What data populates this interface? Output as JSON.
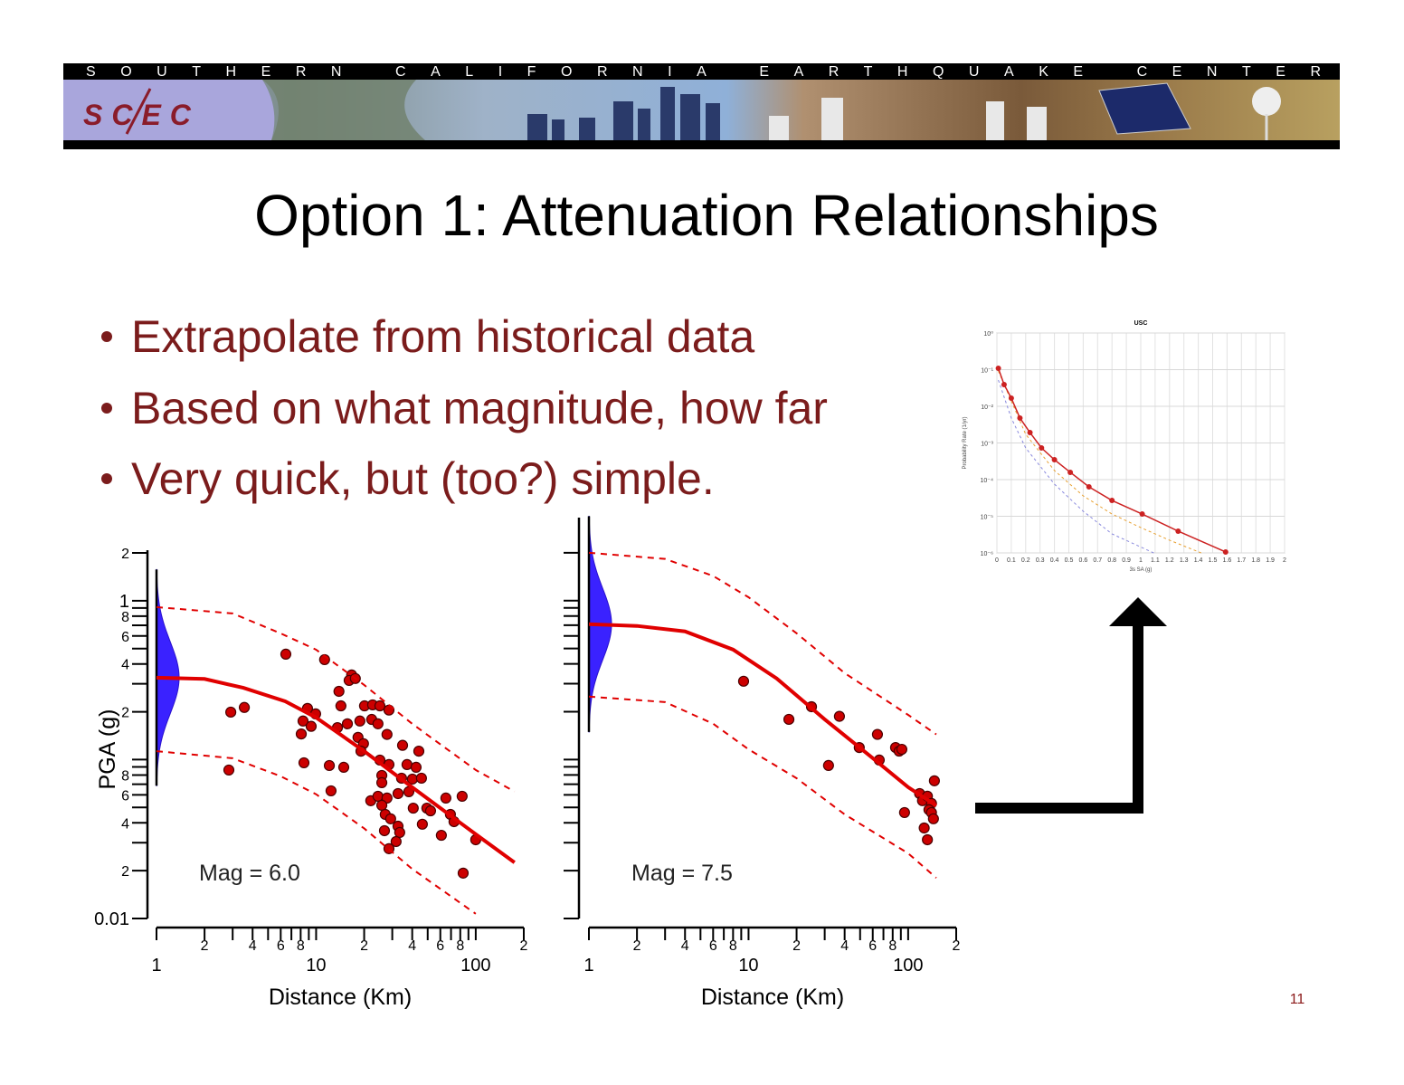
{
  "header": {
    "organization": "SOUTHERN CALIFORNIA EARTHQUAKE CENTER",
    "logo": "SCEC"
  },
  "title": "Option 1: Attenuation Relationships",
  "bullets": [
    "Extrapolate from historical data",
    "Based on what magnitude, how far",
    "Very quick, but (too?) simple."
  ],
  "chart_data": [
    {
      "type": "scatter",
      "x_scale": "log",
      "y_scale": "log",
      "xlabel": "Distance (Km)",
      "ylabel": "PGA (g)",
      "annotation": "Mag = 6.0",
      "xlim": [
        1,
        200
      ],
      "ylim": [
        0.01,
        2
      ],
      "xticks": [
        1,
        2,
        4,
        6,
        8,
        10,
        {
          "value": 20,
          "label": "2"
        },
        {
          "value": 40,
          "label": "4"
        },
        {
          "value": 60,
          "label": "6"
        },
        {
          "value": 80,
          "label": "8"
        },
        100,
        {
          "value": 200,
          "label": "2"
        }
      ],
      "xminor": [
        3,
        5,
        7,
        9,
        30,
        50,
        70,
        90
      ],
      "yticks": [
        0.01,
        {
          "value": 0.02,
          "label": "2"
        },
        {
          "value": 0.04,
          "label": "4"
        },
        {
          "value": 0.06,
          "label": "6"
        },
        {
          "value": 0.08,
          "label": "8"
        },
        {
          "value": 0.2,
          "label": "2"
        },
        {
          "value": 0.4,
          "label": "4"
        },
        {
          "value": 0.6,
          "label": "6"
        },
        {
          "value": 0.8,
          "label": "8"
        },
        1,
        2
      ],
      "yminor": [
        0.03,
        0.05,
        0.07,
        0.09,
        0.1,
        0.3,
        0.5,
        0.7,
        0.9
      ],
      "series": [
        {
          "kind": "scatter",
          "color": "#cc0000",
          "x": [
            6.46,
            11.3,
            2.92,
            3.55,
            2.84,
            16.7,
            16.1,
            17.6,
            13.9,
            14.3,
            8.83,
            9.93,
            8.28,
            9.31,
            8.07,
            15.7,
            13.6,
            18.8,
            20.1,
            22.6,
            25.1,
            28.6,
            22.3,
            24.4,
            18.3,
            19.8,
            27.8,
            34.8,
            44.0,
            19.1,
            8.39,
            12.1,
            14.9,
            25.1,
            28.6,
            37.1,
            42.3,
            25.8,
            25.8,
            34.3,
            40.1,
            45.7,
            32.6,
            38.1,
            12.4,
            22.0,
            24.4,
            27.8,
            25.8,
            40.6,
            49.4,
            52.1,
            65.0,
            82.2,
            69.4,
            73.1,
            27.1,
            29.3,
            26.8,
            32.6,
            33.4,
            31.7,
            28.6,
            46.3,
            60.9,
            100,
            83.4
          ],
          "values": [
            0.461,
            0.426,
            0.199,
            0.213,
            0.086,
            0.341,
            0.315,
            0.324,
            0.269,
            0.218,
            0.21,
            0.194,
            0.175,
            0.162,
            0.145,
            0.168,
            0.159,
            0.175,
            0.218,
            0.221,
            0.218,
            0.205,
            0.179,
            0.168,
            0.138,
            0.126,
            0.144,
            0.123,
            0.113,
            0.113,
            0.0955,
            0.0918,
            0.0895,
            0.0993,
            0.0931,
            0.0931,
            0.0895,
            0.0795,
            0.0716,
            0.0764,
            0.0754,
            0.0764,
            0.0611,
            0.0628,
            0.0636,
            0.0551,
            0.0588,
            0.0573,
            0.0516,
            0.0495,
            0.0495,
            0.0476,
            0.0573,
            0.0588,
            0.0452,
            0.0407,
            0.0452,
            0.0424,
            0.0357,
            0.0381,
            0.0348,
            0.0305,
            0.0275,
            0.0392,
            0.0334,
            0.0313,
            0.0193
          ]
        },
        {
          "kind": "line",
          "dashed": false,
          "color": "#e00000",
          "x": [
            1,
            2,
            3.5,
            6.4,
            10,
            20,
            40,
            100,
            175
          ],
          "values": [
            0.328,
            0.322,
            0.283,
            0.233,
            0.184,
            0.113,
            0.067,
            0.0339,
            0.0225
          ]
        },
        {
          "kind": "line",
          "dashed": true,
          "color": "#e00000",
          "x": [
            1,
            3,
            6,
            10,
            20,
            40,
            100,
            175
          ],
          "values": [
            0.912,
            0.832,
            0.623,
            0.492,
            0.295,
            0.168,
            0.086,
            0.063
          ]
        },
        {
          "kind": "line",
          "dashed": true,
          "color": "#e00000",
          "x": [
            1,
            3,
            6,
            10,
            20,
            40,
            100
          ],
          "values": [
            0.113,
            0.102,
            0.0786,
            0.0605,
            0.0369,
            0.0205,
            0.0107
          ]
        }
      ]
    },
    {
      "type": "scatter",
      "x_scale": "log",
      "y_scale": "log",
      "xlabel": "Distance (Km)",
      "annotation": "Mag = 7.5",
      "xlim": [
        1,
        200
      ],
      "ylim": [
        0.01,
        3.2
      ],
      "xticks": [
        1,
        2,
        4,
        6,
        8,
        10,
        {
          "value": 20,
          "label": "2"
        },
        {
          "value": 40,
          "label": "4"
        },
        {
          "value": 60,
          "label": "6"
        },
        {
          "value": 80,
          "label": "8"
        },
        100,
        {
          "value": 200,
          "label": "2"
        }
      ],
      "xminor": [
        3,
        5,
        7,
        9,
        30,
        50,
        70,
        90
      ],
      "yminor": [
        0.01,
        0.02,
        0.03,
        0.04,
        0.05,
        0.06,
        0.07,
        0.08,
        0.09,
        0.1,
        0.2,
        0.3,
        0.4,
        0.5,
        0.6,
        0.7,
        0.8,
        0.9,
        1,
        2
      ],
      "series": [
        {
          "kind": "scatter",
          "color": "#cc0000",
          "x": [
            9.31,
            17.9,
            24.8,
            37.1,
            31.7,
            49.4,
            64.2,
            65.9,
            83.4,
            87.8,
            91.3,
            94.9,
            118,
            123,
            132,
            140,
            146,
            135,
            126,
            132,
            140,
            144
          ],
          "values": [
            0.311,
            0.179,
            0.215,
            0.187,
            0.0918,
            0.119,
            0.144,
            0.0993,
            0.119,
            0.113,
            0.116,
            0.0464,
            0.0611,
            0.0551,
            0.0588,
            0.053,
            0.0735,
            0.0483,
            0.0371,
            0.0313,
            0.0464,
            0.0424
          ]
        },
        {
          "kind": "line",
          "dashed": false,
          "color": "#e00000",
          "x": [
            1,
            2,
            4,
            8,
            15,
            30,
            60,
            100,
            150
          ],
          "values": [
            0.711,
            0.693,
            0.64,
            0.492,
            0.324,
            0.179,
            0.102,
            0.067,
            0.0513
          ]
        },
        {
          "kind": "line",
          "dashed": true,
          "color": "#e00000",
          "x": [
            1,
            3,
            6,
            10,
            20,
            40,
            100,
            150
          ],
          "values": [
            2.0,
            1.83,
            1.43,
            1.05,
            0.623,
            0.35,
            0.191,
            0.144
          ]
        },
        {
          "kind": "line",
          "dashed": true,
          "color": "#e00000",
          "x": [
            1,
            3,
            6,
            10,
            20,
            40,
            100,
            150
          ],
          "values": [
            0.249,
            0.23,
            0.168,
            0.116,
            0.0763,
            0.0452,
            0.0257,
            0.018
          ]
        }
      ]
    },
    {
      "type": "line",
      "x_scale": "linear",
      "y_scale": "log",
      "grid": true,
      "title": "USC",
      "xlabel": "3s SA (g)",
      "ylabel": "Probability Rate (1/yr)",
      "xlim": [
        0,
        2
      ],
      "ylim": [
        1e-06,
        1
      ],
      "xticks": [
        0,
        0.1,
        0.2,
        0.3,
        0.4,
        0.5,
        0.6,
        0.7,
        0.8,
        0.9,
        1,
        1.1,
        1.2,
        1.3,
        1.4,
        1.5,
        1.6,
        1.7,
        1.8,
        1.9,
        2
      ],
      "yticks": [
        {
          "value": 1,
          "label": "10⁰"
        },
        {
          "value": 0.1,
          "label": "10⁻¹"
        },
        {
          "value": 0.01,
          "label": "10⁻²"
        },
        {
          "value": 0.001,
          "label": "10⁻³"
        },
        {
          "value": 0.0001,
          "label": "10⁻⁴"
        },
        {
          "value": 1e-05,
          "label": "10⁻⁵"
        },
        {
          "value": 1e-06,
          "label": "10⁻⁶"
        }
      ],
      "series": [
        {
          "kind": "line",
          "dashed": true,
          "color": "#8888dd",
          "x": [
            0.01,
            0.1,
            0.2,
            0.4,
            0.6,
            0.8,
            1.09
          ],
          "values": [
            0.052,
            0.00478,
            0.000731,
            7.53e-05,
            1.37e-05,
            3.3e-06,
            1e-06
          ]
        },
        {
          "kind": "line",
          "dashed": true,
          "color": "#e8a030",
          "x": [
            0.01,
            0.2,
            0.4,
            0.6,
            0.8,
            1.0,
            1.2,
            1.42
          ],
          "values": [
            0.0918,
            0.00172,
            0.000177,
            3.6e-05,
            1.15e-05,
            4.91e-06,
            2.22e-06,
            1e-06
          ]
        },
        {
          "kind": "line",
          "dashed": false,
          "markers": true,
          "color": "#cc2222",
          "x": [
            0.01,
            0.05,
            0.1,
            0.16,
            0.23,
            0.31,
            0.4,
            0.51,
            0.64,
            0.8,
            1.01,
            1.26,
            1.59
          ],
          "values": [
            0.109,
            0.0392,
            0.0167,
            0.00478,
            0.00192,
            0.000731,
            0.000349,
            0.000158,
            6.34e-05,
            2.7e-05,
            1.15e-05,
            3.92e-06,
            1.06e-06
          ]
        }
      ]
    }
  ],
  "page_number": "11"
}
